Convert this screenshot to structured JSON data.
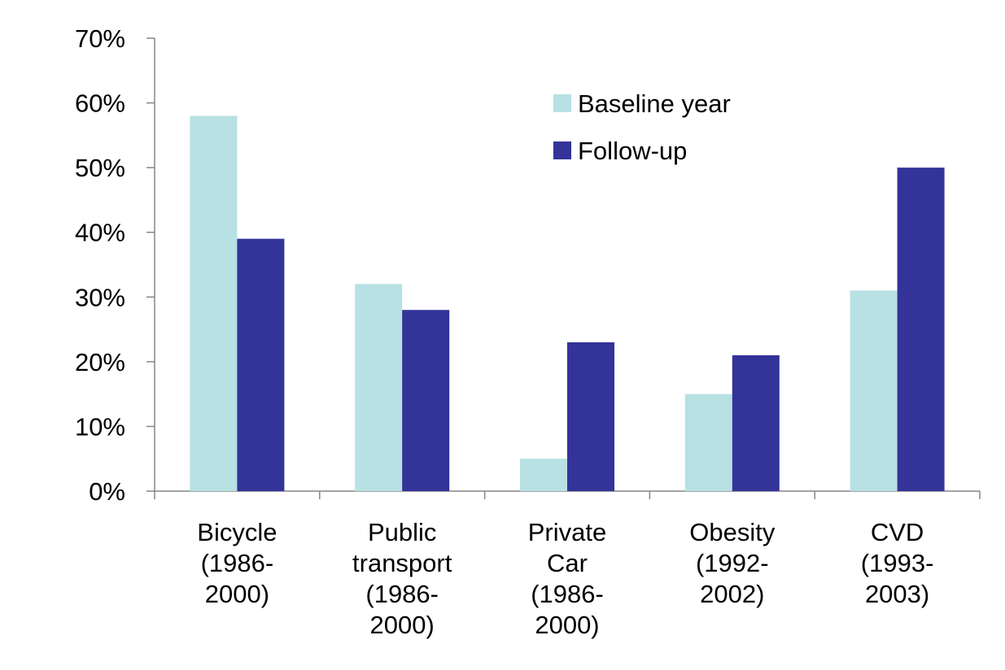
{
  "chart_data": {
    "type": "bar",
    "title": "",
    "xlabel": "",
    "ylabel": "",
    "ylim": [
      0,
      70
    ],
    "yticks": [
      "0%",
      "10%",
      "20%",
      "30%",
      "40%",
      "50%",
      "60%",
      "70%"
    ],
    "grid": false,
    "legend_position": "top-right",
    "categories": [
      [
        "Bicycle",
        "(1986-",
        "2000)"
      ],
      [
        "Public",
        "transport",
        "(1986-",
        "2000)"
      ],
      [
        "Private",
        "Car",
        "(1986-",
        "2000)"
      ],
      [
        "Obesity",
        "(1992-",
        "2002)"
      ],
      [
        "CVD",
        "(1993-",
        "2003)"
      ]
    ],
    "series": [
      {
        "name": "Baseline year",
        "color": "#b7e1e3",
        "values": [
          58,
          32,
          5,
          15,
          31
        ]
      },
      {
        "name": "Follow-up",
        "color": "#333399",
        "values": [
          39,
          28,
          23,
          21,
          50
        ]
      }
    ]
  }
}
